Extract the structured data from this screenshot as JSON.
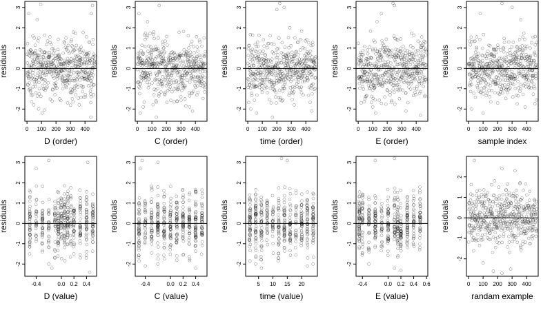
{
  "figure": {
    "title": "",
    "rows": 2,
    "cols": 5
  },
  "chart_data": [
    {
      "type": "scatter",
      "xlabel": "D (order)",
      "ylabel": "residuals",
      "xlim": [
        -15,
        480
      ],
      "ylim": [
        -2.6,
        3.3
      ],
      "xticks": [
        0,
        100,
        200,
        300,
        400
      ],
      "yticks": [
        -2,
        -1,
        0,
        1,
        2,
        3
      ],
      "reference_line_y": 0,
      "n_points": 470,
      "x_distribution": "index",
      "highlights": [
        [
          12,
          2.7
        ],
        [
          70,
          2.4
        ],
        [
          95,
          3.15
        ],
        [
          40,
          1.6
        ],
        [
          430,
          1.3
        ],
        [
          445,
          2.7
        ],
        [
          452,
          3.1
        ],
        [
          80,
          -2.0
        ],
        [
          105,
          -2.2
        ],
        [
          120,
          -2.05
        ],
        [
          440,
          -2.4
        ],
        [
          360,
          -1.8
        ],
        [
          280,
          -1.7
        ]
      ]
    },
    {
      "type": "scatter",
      "xlabel": "C (order)",
      "ylabel": "residuals",
      "xlim": [
        -15,
        480
      ],
      "ylim": [
        -2.6,
        3.3
      ],
      "xticks": [
        0,
        100,
        200,
        300,
        400
      ],
      "yticks": [
        -2,
        -1,
        0,
        1,
        2,
        3
      ],
      "reference_line_y": 0,
      "n_points": 470,
      "x_distribution": "index",
      "highlights": [
        [
          10,
          2.7
        ],
        [
          150,
          3.1
        ],
        [
          70,
          2.3
        ],
        [
          460,
          1.5
        ],
        [
          430,
          1.3
        ],
        [
          40,
          -1.9
        ],
        [
          130,
          -2.4
        ],
        [
          380,
          -2.1
        ],
        [
          20,
          -2.2
        ],
        [
          360,
          -1.9
        ]
      ]
    },
    {
      "type": "scatter",
      "xlabel": "time (order)",
      "ylabel": "residuals",
      "xlim": [
        -15,
        480
      ],
      "ylim": [
        -2.6,
        3.3
      ],
      "xticks": [
        0,
        100,
        200,
        300,
        400
      ],
      "yticks": [
        -2,
        -1,
        0,
        1,
        2,
        3
      ],
      "reference_line_y": 0,
      "n_points": 470,
      "x_distribution": "index",
      "highlights": [
        [
          220,
          3.2
        ],
        [
          250,
          3.0
        ],
        [
          200,
          2.9
        ],
        [
          290,
          2.0
        ],
        [
          20,
          -2.0
        ],
        [
          60,
          -2.2
        ],
        [
          170,
          -2.4
        ],
        [
          440,
          -2.1
        ],
        [
          320,
          -1.8
        ]
      ]
    },
    {
      "type": "scatter",
      "xlabel": "E (order)",
      "ylabel": "residuals",
      "xlim": [
        -15,
        480
      ],
      "ylim": [
        -2.6,
        3.3
      ],
      "xticks": [
        0,
        100,
        200,
        300,
        400
      ],
      "yticks": [
        -2,
        -1,
        0,
        1,
        2,
        3
      ],
      "reference_line_y": 0,
      "n_points": 470,
      "x_distribution": "index",
      "highlights": [
        [
          240,
          3.2
        ],
        [
          250,
          3.1
        ],
        [
          160,
          2.7
        ],
        [
          130,
          2.3
        ],
        [
          100,
          -1.9
        ],
        [
          120,
          -2.2
        ],
        [
          330,
          -2.1
        ],
        [
          430,
          -2.3
        ],
        [
          20,
          -1.7
        ]
      ]
    },
    {
      "type": "scatter",
      "xlabel": "sample index",
      "ylabel": "residuals",
      "xlim": [
        -15,
        480
      ],
      "ylim": [
        -2.6,
        3.3
      ],
      "xticks": [
        0,
        100,
        200,
        300,
        400
      ],
      "yticks": [
        -2,
        -1,
        0,
        1,
        2,
        3
      ],
      "reference_line_y": 0,
      "n_points": 470,
      "x_distribution": "index",
      "highlights": [
        [
          230,
          3.2
        ],
        [
          300,
          3.0
        ],
        [
          80,
          2.7
        ],
        [
          360,
          2.4
        ],
        [
          100,
          -2.2
        ],
        [
          20,
          -2.0
        ],
        [
          390,
          -1.9
        ],
        [
          200,
          -1.7
        ]
      ]
    },
    {
      "type": "scatter",
      "xlabel": "D (value)",
      "ylabel": "residuals",
      "xlim": [
        -0.58,
        0.56
      ],
      "ylim": [
        -2.6,
        3.3
      ],
      "xticks": [
        -0.4,
        0.0,
        0.2,
        0.4
      ],
      "xtick_labels": [
        "-0.4",
        "0.0",
        "0.2",
        "0.4"
      ],
      "yticks": [
        -2,
        -1,
        0,
        1,
        2,
        3
      ],
      "reference_line_y": 0,
      "n_points": 470,
      "x_distribution": "discrete",
      "x_levels": [
        -0.5,
        -0.4,
        -0.3,
        -0.2,
        -0.1,
        -0.05,
        0.0,
        0.05,
        0.1,
        0.15,
        0.2,
        0.3,
        0.4,
        0.5
      ],
      "highlights": [
        [
          -0.4,
          2.7
        ],
        [
          -0.2,
          3.1
        ],
        [
          0.42,
          3.0
        ],
        [
          -0.2,
          -2.0
        ],
        [
          -0.15,
          -2.2
        ],
        [
          0.45,
          -2.4
        ]
      ]
    },
    {
      "type": "scatter",
      "xlabel": "C (value)",
      "ylabel": "residuals",
      "xlim": [
        -0.56,
        0.58
      ],
      "ylim": [
        -2.6,
        3.3
      ],
      "xticks": [
        -0.4,
        0.0,
        0.2,
        0.4
      ],
      "xtick_labels": [
        "-0.4",
        "0.0",
        "0.2",
        "0.4"
      ],
      "yticks": [
        -2,
        -1,
        0,
        1,
        2,
        3
      ],
      "reference_line_y": 0,
      "n_points": 470,
      "x_distribution": "discrete",
      "x_levels": [
        -0.5,
        -0.4,
        -0.3,
        -0.2,
        -0.1,
        0.0,
        0.1,
        0.2,
        0.3,
        0.4,
        0.5
      ],
      "highlights": [
        [
          -0.48,
          2.7
        ],
        [
          -0.45,
          3.1
        ],
        [
          -0.2,
          3.0
        ],
        [
          -0.4,
          -2.1
        ],
        [
          -0.2,
          -2.0
        ],
        [
          0.4,
          -2.2
        ]
      ]
    },
    {
      "type": "scatter",
      "xlabel": "time (value)",
      "ylabel": "residuals",
      "xlim": [
        0.5,
        25.5
      ],
      "ylim": [
        -2.6,
        3.3
      ],
      "xticks": [
        5,
        10,
        15,
        20
      ],
      "xtick_labels": [
        "5",
        "10",
        "15",
        "20"
      ],
      "yticks": [
        -2,
        -1,
        0,
        1,
        2,
        3
      ],
      "reference_line_y": 0,
      "n_points": 470,
      "x_distribution": "discrete",
      "x_levels": [
        2,
        4,
        6,
        8,
        10,
        12,
        14,
        16,
        18,
        20,
        22,
        24
      ],
      "highlights": [
        [
          15,
          3.1
        ],
        [
          13,
          3.2
        ],
        [
          4,
          -2.0
        ],
        [
          6,
          -2.2
        ],
        [
          22,
          -2.1
        ],
        [
          24,
          -2.0
        ]
      ]
    },
    {
      "type": "scatter",
      "xlabel": "E (value)",
      "ylabel": "residuals",
      "xlim": [
        -0.5,
        0.62
      ],
      "ylim": [
        -2.6,
        3.3
      ],
      "xticks": [
        -0.4,
        0.0,
        0.2,
        0.4,
        0.6
      ],
      "xtick_labels": [
        "-0.4",
        "0.0",
        "0.2",
        "0.4",
        "0.6"
      ],
      "yticks": [
        -2,
        -1,
        0,
        1,
        2,
        3
      ],
      "reference_line_y": 0,
      "n_points": 470,
      "x_distribution": "discrete",
      "x_levels": [
        -0.45,
        -0.4,
        -0.3,
        -0.2,
        -0.1,
        0.0,
        0.1,
        0.15,
        0.2,
        0.3,
        0.4,
        0.5
      ],
      "highlights": [
        [
          -0.2,
          3.1
        ],
        [
          0.1,
          3.2
        ],
        [
          -0.3,
          -2.0
        ],
        [
          0.1,
          -2.2
        ],
        [
          0.2,
          -2.3
        ]
      ]
    },
    {
      "type": "scatter",
      "xlabel": "randam example",
      "ylabel": "residuals",
      "xlim": [
        -15,
        480
      ],
      "ylim": [
        -2.85,
        3.0
      ],
      "xticks": [
        0,
        100,
        200,
        300,
        400
      ],
      "yticks": [
        -2,
        -1,
        0,
        1,
        2
      ],
      "reference_line_y": 0,
      "n_points": 470,
      "x_distribution": "index",
      "highlights": [
        [
          40,
          2.8
        ],
        [
          230,
          2.4
        ],
        [
          320,
          2.3
        ],
        [
          170,
          -2.6
        ],
        [
          230,
          -2.7
        ],
        [
          290,
          -2.5
        ],
        [
          100,
          -2.2
        ]
      ]
    }
  ]
}
